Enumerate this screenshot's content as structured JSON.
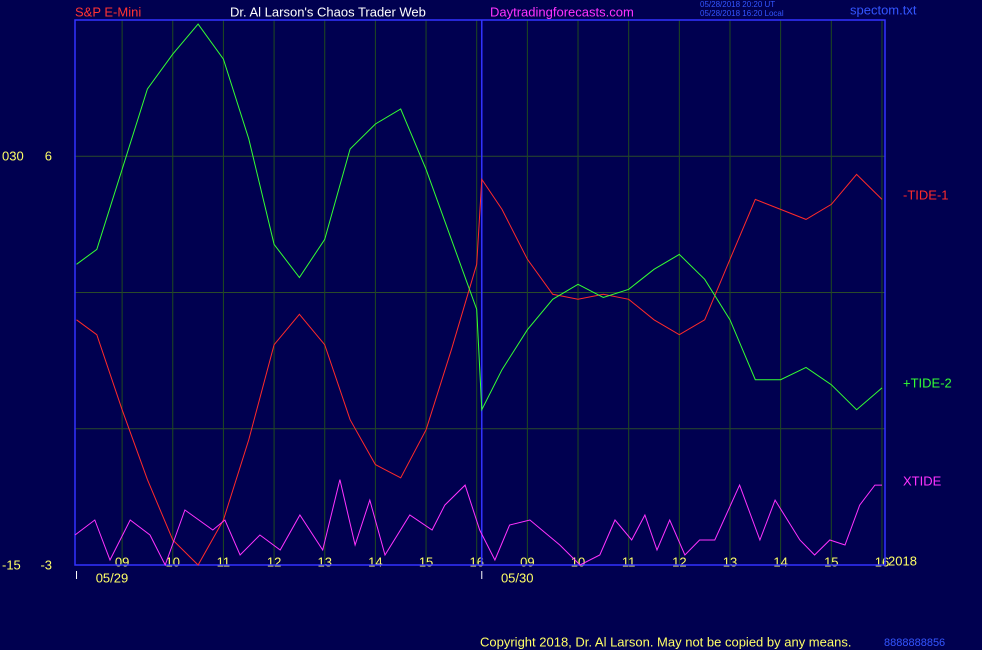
{
  "chart_data": {
    "type": "line",
    "title": "Dr. Al Larson's Chaos Trader Web",
    "instrument": "S&P E-Mini",
    "website": "Daytradingforecasts.com",
    "timestamps": [
      "05/28/2018 20:20 UT",
      "05/28/2018 16:20 Local"
    ],
    "file": "spectom.txt",
    "copyright": "Copyright 2018, Dr. Al Larson. May not be copied by any means.",
    "footer_code": "8888888856",
    "year_label": "2018",
    "xlim": [
      8.07,
      24.06
    ],
    "xticks": [
      {
        "value": 9,
        "label": "09"
      },
      10,
      11,
      12,
      13,
      14,
      15,
      16,
      {
        "value": 17,
        "label": "09"
      },
      {
        "value": 18,
        "label": "10"
      },
      {
        "value": 19,
        "label": "11"
      },
      {
        "value": 20,
        "label": "12"
      },
      {
        "value": 21,
        "label": "13"
      },
      {
        "value": 22,
        "label": "14"
      },
      {
        "value": 23,
        "label": "15"
      },
      {
        "value": 24,
        "label": "16"
      }
    ],
    "date_labels": [
      {
        "value": 8.8,
        "label": "05/29"
      },
      {
        "value": 16.8,
        "label": "05/30"
      }
    ],
    "day_breaks": [
      8.1,
      16.1
    ],
    "ylim": [
      -3,
      9
    ],
    "yticks": [
      -3,
      6
    ],
    "ygrid": [
      0,
      3,
      6
    ],
    "y2lim": [
      -15,
      45
    ],
    "y2ticks": [
      -15,
      {
        "value": 30,
        "label": "030"
      }
    ],
    "x": [
      8.1,
      8.5,
      9,
      9.5,
      10,
      10.5,
      11,
      11.5,
      12,
      12.5,
      13,
      13.5,
      14,
      14.5,
      15,
      15.5,
      16,
      16.1,
      16.5,
      17,
      17.5,
      18,
      18.5,
      19,
      19.5,
      20,
      20.5,
      21,
      21.5,
      22,
      22.5,
      23,
      23.5,
      24
    ],
    "series": [
      {
        "name": "-TIDE-1",
        "color": "#ff2a2a",
        "values": [
          2.4,
          2.07,
          0.42,
          -1.12,
          -2.45,
          -3,
          -2.01,
          -0.24,
          1.85,
          2.52,
          1.85,
          0.2,
          -0.79,
          -1.08,
          -0.02,
          1.74,
          3.62,
          5.49,
          4.83,
          3.73,
          2.96,
          2.85,
          2.96,
          2.85,
          2.4,
          2.07,
          2.4,
          3.73,
          5.05,
          4.83,
          4.61,
          4.94,
          5.6,
          5.05
        ]
      },
      {
        "name": "+TIDE-2",
        "color": "#33ff33",
        "values": [
          3.62,
          3.95,
          5.71,
          7.48,
          8.25,
          8.91,
          8.14,
          6.38,
          4.06,
          3.33,
          4.17,
          6.16,
          6.71,
          7.04,
          5.71,
          4.17,
          2.63,
          0.42,
          1.3,
          2.18,
          2.85,
          3.18,
          2.89,
          3.07,
          3.51,
          3.84,
          3.29,
          2.4,
          1.08,
          1.08,
          1.35,
          0.97,
          0.42,
          0.9
        ]
      },
      {
        "name": "XTIDE",
        "color": "#ff33ff",
        "x": [
          8.07,
          8.46,
          8.76,
          9.16,
          9.55,
          9.85,
          10.24,
          10.79,
          11.03,
          11.33,
          11.72,
          12.12,
          12.51,
          12.96,
          13.3,
          13.6,
          13.89,
          14.19,
          14.68,
          15.12,
          15.37,
          15.77,
          16.06,
          16.36,
          16.65,
          17.05,
          17.64,
          18.04,
          18.43,
          18.73,
          19.06,
          19.32,
          19.56,
          19.81,
          20.11,
          20.4,
          20.7,
          21.19,
          21.59,
          21.89,
          22.38,
          22.67,
          22.97,
          23.27,
          23.56,
          23.86,
          24.0
        ],
        "values": [
          -2.34,
          -2.01,
          -2.89,
          -2.01,
          -2.34,
          -3,
          -1.79,
          -2.23,
          -2.01,
          -2.78,
          -2.34,
          -2.67,
          -1.9,
          -2.67,
          -1.12,
          -2.56,
          -1.57,
          -2.78,
          -1.9,
          -2.23,
          -1.68,
          -1.24,
          -2.23,
          -2.89,
          -2.12,
          -2.01,
          -2.56,
          -3,
          -2.78,
          -2.01,
          -2.45,
          -1.9,
          -2.67,
          -2.01,
          -2.78,
          -2.45,
          -2.45,
          -1.24,
          -2.45,
          -1.57,
          -2.45,
          -2.78,
          -2.45,
          -2.56,
          -1.68,
          -1.24,
          -1.24
        ]
      }
    ]
  }
}
